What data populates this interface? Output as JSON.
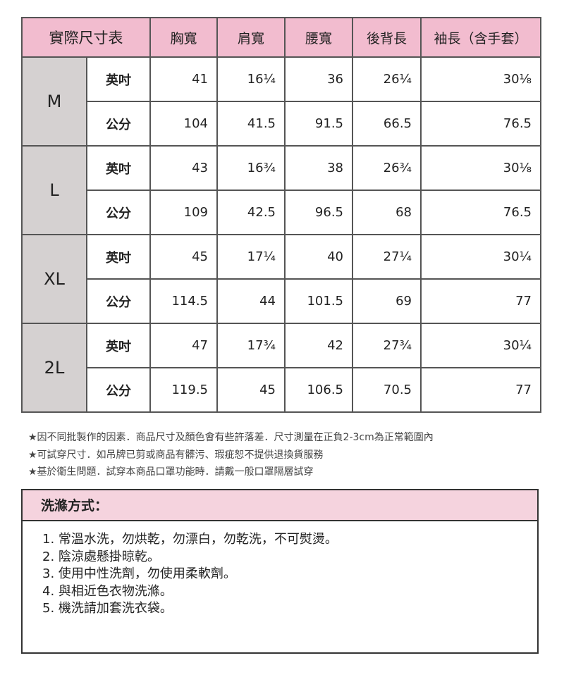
{
  "table": {
    "title": "實際尺寸表",
    "columns": [
      "胸寬",
      "肩寬",
      "腰寬",
      "後背長",
      "袖長（含手套）"
    ],
    "units": {
      "inch": "英吋",
      "cm": "公分"
    },
    "sizes": [
      {
        "size": "M",
        "inch": [
          "41",
          "16¼",
          "36",
          "26¼",
          "30⅛"
        ],
        "cm": [
          "104",
          "41.5",
          "91.5",
          "66.5",
          "76.5"
        ]
      },
      {
        "size": "L",
        "inch": [
          "43",
          "16¾",
          "38",
          "26¾",
          "30⅛"
        ],
        "cm": [
          "109",
          "42.5",
          "96.5",
          "68",
          "76.5"
        ]
      },
      {
        "size": "XL",
        "inch": [
          "45",
          "17¼",
          "40",
          "27¼",
          "30¼"
        ],
        "cm": [
          "114.5",
          "44",
          "101.5",
          "69",
          "77"
        ]
      },
      {
        "size": "2L",
        "inch": [
          "47",
          "17¾",
          "42",
          "27¾",
          "30¼"
        ],
        "cm": [
          "119.5",
          "45",
          "106.5",
          "70.5",
          "77"
        ]
      }
    ]
  },
  "notes": [
    "★因不同批製作的因素．商品尺寸及顏色會有些許落差．尺寸測量在正負2-3cm為正常範圍內",
    "★可試穿尺寸．如吊牌已剪或商品有髒污、瑕疵恕不提供退換貨服務",
    "★基於衛生問題．試穿本商品口罩功能時．請戴一般口罩隔層試穿"
  ],
  "washing": {
    "title": "洗滌方式：",
    "items": [
      "1.  常溫水洗，勿烘乾，勿漂白，勿乾洗，不可熨燙。",
      "2. 陰涼處懸掛晾乾。",
      "3. 使用中性洗劑，勿使用柔軟劑。",
      "4. 與相近色衣物洗滌。",
      "5. 機洗請加套洗衣袋。"
    ]
  },
  "colors": {
    "header_pink": "#f2bccf",
    "size_gray": "#d5d1d1",
    "wash_pink": "#f5d3de"
  }
}
